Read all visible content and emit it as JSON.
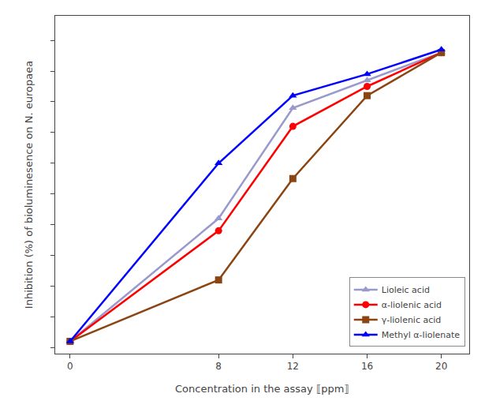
{
  "chart_data": {
    "type": "line",
    "xlabel": "Concentration in the assay ⟦ppm⟧",
    "ylabel": "Inhibition (%) of bioluminesence on N. europaea",
    "x": [
      0,
      8,
      12,
      16,
      20
    ],
    "series": [
      {
        "name": "Lioleic acid",
        "color": "#9999cc",
        "marker": "triangle",
        "values": [
          2,
          42,
          78,
          87,
          96
        ]
      },
      {
        "name": "α-liolenic acid",
        "color": "#ff0000",
        "marker": "circle",
        "values": [
          2,
          38,
          72,
          85,
          96
        ]
      },
      {
        "name": "γ-liolenic acid",
        "color": "#8B4513",
        "marker": "square",
        "values": [
          2,
          22,
          55,
          82,
          96
        ]
      },
      {
        "name": "Methyl α-liolenate",
        "color": "#0000ff",
        "marker": "triangle",
        "values": [
          2,
          60,
          82,
          89,
          97
        ]
      }
    ],
    "xlim": [
      -0.8,
      21.5
    ],
    "xticks": [
      0,
      8,
      12,
      16,
      20
    ],
    "ylim": [
      -2,
      108
    ],
    "yticks": [
      0,
      10,
      20,
      30,
      40,
      50,
      60,
      70,
      80,
      90,
      100
    ],
    "tick_labels": "x",
    "grid": false,
    "legend": "lower right"
  }
}
